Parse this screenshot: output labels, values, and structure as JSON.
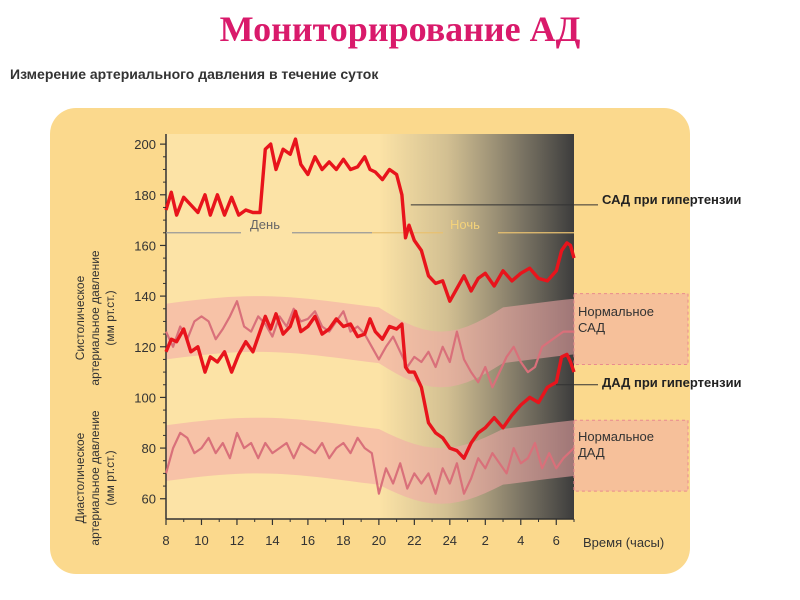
{
  "page": {
    "title": "Мониторирование АД",
    "subtitle": "Измерение артериального давления в течение суток"
  },
  "colors": {
    "title": "#d91a6b",
    "panel": "#fbd98d",
    "hypertension": "#e8141c",
    "normal": "#d9707a",
    "normal_band": "#f2a7a8",
    "night_shade": "#4a4a4a",
    "day_night_line": "#e8c070"
  },
  "chart_data": {
    "type": "line",
    "xlabel": "Время (часы)",
    "ylabel_systolic": "Систолическое артериальное давление (мм рт.ст.)",
    "ylabel_diastolic": "Диастолическое артериальное давление (мм рт.ст.)",
    "x_ticks": [
      "8",
      "10",
      "12",
      "14",
      "16",
      "18",
      "20",
      "22",
      "24",
      "2",
      "4",
      "6"
    ],
    "y_ticks": [
      60,
      80,
      100,
      120,
      140,
      160,
      180,
      200
    ],
    "ylim": [
      52,
      204
    ],
    "x_range_hours": [
      8,
      31
    ],
    "periods": {
      "day": "День",
      "night": "Ночь"
    },
    "annotations": {
      "sad_hyper": "САД при гипертензии",
      "dad_hyper": "ДАД при гипертензии",
      "normal_sad_line1": "Нормальное",
      "normal_sad_line2": "САД",
      "normal_dad_line1": "Нормальное",
      "normal_dad_line2": "ДАД"
    },
    "series": [
      {
        "name": "САД при гипертензии",
        "x": [
          8.0,
          8.3,
          8.6,
          9.0,
          9.4,
          9.8,
          10.2,
          10.5,
          10.9,
          11.3,
          11.7,
          12.1,
          12.5,
          12.9,
          13.3,
          13.6,
          13.9,
          14.2,
          14.6,
          15.0,
          15.3,
          15.6,
          16.0,
          16.4,
          16.8,
          17.2,
          17.6,
          18.0,
          18.4,
          18.8,
          19.2,
          19.5,
          19.8,
          20.2,
          20.6,
          21.0,
          21.3,
          21.5,
          21.7,
          22.0,
          22.4,
          22.8,
          23.2,
          23.6,
          24.0,
          24.4,
          24.8,
          25.2,
          25.6,
          26.0,
          26.5,
          27.0,
          27.5,
          28.0,
          28.5,
          29.0,
          29.5,
          30.0,
          30.3,
          30.6,
          30.8,
          31.0
        ],
        "values": [
          174,
          181,
          172,
          179,
          176,
          173,
          180,
          172,
          180,
          172,
          179,
          172,
          174,
          173,
          173,
          198,
          200,
          190,
          198,
          196,
          202,
          192,
          188,
          195,
          190,
          193,
          190,
          194,
          190,
          191,
          195,
          190,
          189,
          186,
          190,
          188,
          180,
          163,
          168,
          162,
          158,
          148,
          145,
          146,
          138,
          143,
          148,
          142,
          147,
          149,
          144,
          150,
          146,
          149,
          151,
          147,
          146,
          150,
          158,
          161,
          160,
          155
        ]
      },
      {
        "name": "ДАД при гипертензии",
        "x": [
          8.0,
          8.3,
          8.6,
          9.0,
          9.4,
          9.8,
          10.2,
          10.5,
          10.9,
          11.3,
          11.7,
          12.1,
          12.5,
          12.9,
          13.3,
          13.6,
          13.9,
          14.2,
          14.6,
          15.0,
          15.3,
          15.6,
          16.0,
          16.4,
          16.8,
          17.2,
          17.6,
          18.0,
          18.4,
          18.8,
          19.2,
          19.5,
          19.8,
          20.2,
          20.6,
          21.0,
          21.3,
          21.5,
          21.7,
          22.0,
          22.4,
          22.8,
          23.2,
          23.6,
          24.0,
          24.4,
          24.8,
          25.2,
          25.6,
          26.0,
          26.5,
          27.0,
          27.5,
          28.0,
          28.5,
          29.0,
          29.5,
          30.0,
          30.3,
          30.6,
          30.8,
          31.0
        ],
        "values": [
          118,
          123,
          122,
          127,
          118,
          120,
          110,
          116,
          114,
          118,
          110,
          117,
          122,
          118,
          126,
          132,
          127,
          133,
          125,
          128,
          134,
          126,
          128,
          132,
          125,
          127,
          131,
          128,
          129,
          124,
          125,
          131,
          126,
          123,
          128,
          127,
          129,
          112,
          110,
          110,
          104,
          90,
          86,
          84,
          80,
          79,
          76,
          82,
          86,
          88,
          92,
          88,
          93,
          97,
          100,
          98,
          104,
          106,
          116,
          117,
          114,
          110
        ]
      },
      {
        "name": "Нормальное САД",
        "x": [
          8.0,
          8.4,
          8.8,
          9.2,
          9.6,
          10.0,
          10.4,
          10.8,
          11.2,
          11.6,
          12.0,
          12.4,
          12.8,
          13.2,
          13.6,
          14.0,
          14.4,
          14.8,
          15.2,
          15.6,
          16.0,
          16.4,
          16.8,
          17.2,
          17.6,
          18.0,
          18.4,
          18.8,
          19.2,
          19.6,
          20.0,
          20.4,
          20.8,
          21.2,
          21.6,
          22.0,
          22.4,
          22.8,
          23.2,
          23.6,
          24.0,
          24.4,
          24.8,
          25.2,
          25.6,
          26.0,
          26.4,
          26.8,
          27.2,
          27.6,
          28.0,
          28.4,
          28.8,
          29.2,
          29.6,
          30.0,
          30.4,
          31.0
        ],
        "values": [
          126,
          120,
          128,
          123,
          130,
          132,
          130,
          123,
          127,
          132,
          138,
          128,
          126,
          132,
          129,
          124,
          132,
          128,
          135,
          130,
          131,
          134,
          128,
          126,
          130,
          134,
          126,
          128,
          125,
          120,
          115,
          120,
          124,
          118,
          112,
          116,
          114,
          118,
          112,
          120,
          114,
          126,
          115,
          110,
          106,
          112,
          104,
          110,
          116,
          120,
          114,
          110,
          112,
          120,
          122,
          124,
          126,
          126
        ]
      },
      {
        "name": "Нормальное ДАД",
        "x": [
          8.0,
          8.4,
          8.8,
          9.2,
          9.6,
          10.0,
          10.4,
          10.8,
          11.2,
          11.6,
          12.0,
          12.4,
          12.8,
          13.2,
          13.6,
          14.0,
          14.4,
          14.8,
          15.2,
          15.6,
          16.0,
          16.4,
          16.8,
          17.2,
          17.6,
          18.0,
          18.4,
          18.8,
          19.2,
          19.6,
          20.0,
          20.4,
          20.8,
          21.2,
          21.6,
          22.0,
          22.4,
          22.8,
          23.2,
          23.6,
          24.0,
          24.4,
          24.8,
          25.2,
          25.6,
          26.0,
          26.4,
          26.8,
          27.2,
          27.6,
          28.0,
          28.4,
          28.8,
          29.2,
          29.6,
          30.0,
          30.4,
          31.0
        ],
        "values": [
          70,
          80,
          86,
          84,
          78,
          80,
          84,
          78,
          82,
          76,
          86,
          80,
          82,
          76,
          82,
          78,
          80,
          82,
          76,
          82,
          80,
          78,
          82,
          76,
          80,
          82,
          78,
          84,
          80,
          78,
          62,
          72,
          66,
          74,
          64,
          70,
          66,
          70,
          62,
          72,
          66,
          74,
          62,
          68,
          76,
          72,
          78,
          74,
          70,
          80,
          74,
          76,
          82,
          72,
          78,
          72,
          76,
          80
        ]
      }
    ]
  }
}
